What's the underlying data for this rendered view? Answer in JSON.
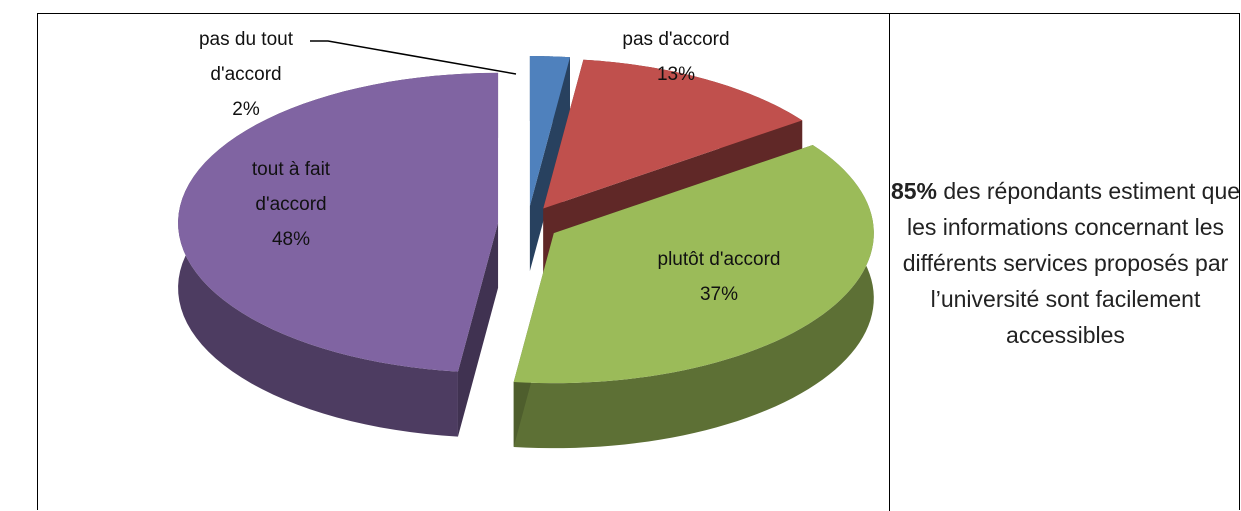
{
  "chart_data": {
    "type": "pie",
    "categories": [
      "pas du tout d'accord",
      "pas d'accord",
      "plutôt d'accord",
      "tout à fait d'accord"
    ],
    "values": [
      2,
      13,
      37,
      48
    ],
    "value_labels": [
      "2%",
      "13%",
      "37%",
      "48%"
    ],
    "colors": [
      "#4f81bd",
      "#c0504d",
      "#9bbb59",
      "#8064a2"
    ],
    "note": {
      "highlight": "85%",
      "text": "des répondants estiment que les informations concernant les différents services proposés par l’université sont facilement accessibles"
    }
  }
}
